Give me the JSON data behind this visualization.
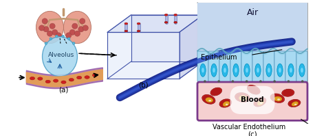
{
  "bg_color": "#ffffff",
  "panel_a_label": "(a)",
  "panel_b_label": "(b)",
  "panel_c_label": "(c)",
  "alveolus_text": "Alveolus",
  "air_text": "Air",
  "epithelium_text": "Epithelium",
  "blood_text": "Blood",
  "vascular_text": "Vascular Endothelium",
  "air_color": "#c5d8ef",
  "epi_bg_color": "#b8d8ee",
  "epi_cell_color": "#a0d4ee",
  "epi_nucleus_color": "#30a0d8",
  "blood_bg_color": "#f5d0d0",
  "blood_border_color": "#7a3a8a",
  "chip_box_color": "#4455aa",
  "chip_channel_color": "#1a2a99",
  "lung_color": "#e8a090",
  "alveolus_color": "#a8d8f0",
  "vessel_outer_color": "#9050a0",
  "vessel_inner_color": "#e8a050",
  "rbc_color": "#cc2020",
  "rbc_highlight": "#e8b020"
}
